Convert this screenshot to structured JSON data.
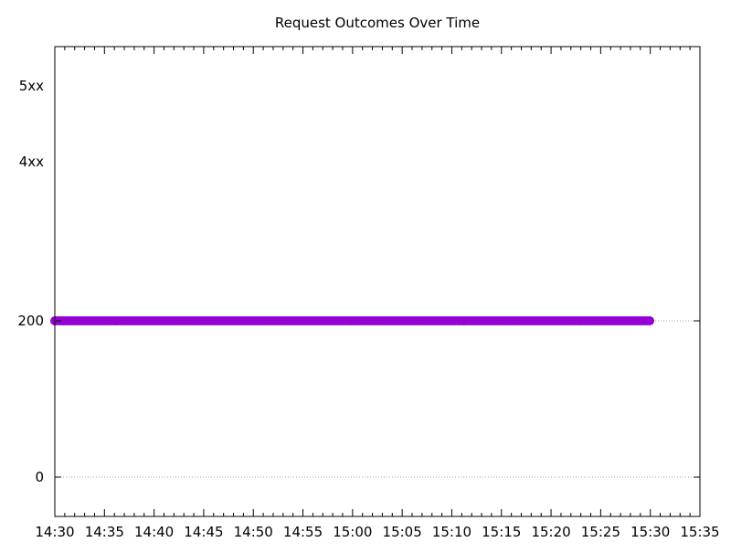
{
  "chart_data": {
    "type": "scatter",
    "title": "Request Outcomes Over Time",
    "xlabel": "",
    "ylabel": "",
    "x_range": [
      "14:30",
      "15:35"
    ],
    "x_tick_labels": [
      "14:30",
      "14:35",
      "14:40",
      "14:45",
      "14:50",
      "14:55",
      "15:00",
      "15:05",
      "15:10",
      "15:15",
      "15:20",
      "15:25",
      "15:30",
      "15:35"
    ],
    "y_ticks": [
      {
        "label": "5xx",
        "gridline": false
      },
      {
        "label": "4xx",
        "gridline": false
      },
      {
        "label": "200",
        "gridline": true
      },
      {
        "label": "0",
        "gridline": true
      }
    ],
    "series": [
      {
        "color": "#9400d3",
        "y": "200",
        "x_start": "14:30",
        "x_end": "15:30"
      }
    ],
    "grid": "dotted horizontal at 200 and 0",
    "legend": "none"
  }
}
